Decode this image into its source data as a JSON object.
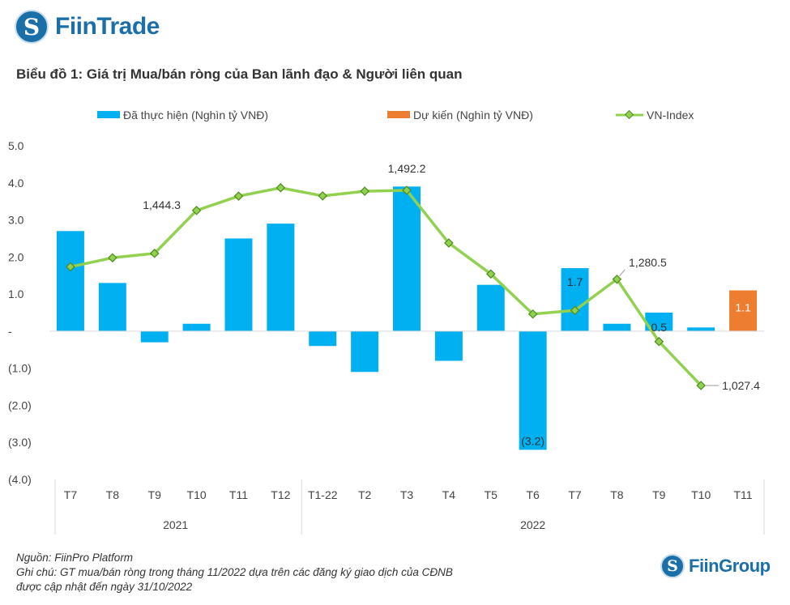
{
  "header": {
    "logo_text": "FiinTrade",
    "logo_symbol": "S",
    "title": "Biểu đồ 1: Giá trị Mua/bán ròng của Ban lãnh đạo & Người liên quan"
  },
  "footer": {
    "source": "Nguồn: FiinPro Platform",
    "note_line1": "Ghi chú: GT mua/bán ròng trong tháng 11/2022 dựa trên các đăng ký giao dịch của CĐNB",
    "note_line2": "được cập nhật đến ngày 31/10/2022",
    "logo_text": "FiinGroup",
    "logo_symbol": "S"
  },
  "chart_data": {
    "type": "bar+line",
    "title": "Biểu đồ 1: Giá trị Mua/bán ròng của Ban lãnh đạo & Người liên quan",
    "categories": [
      "T7",
      "T8",
      "T9",
      "T10",
      "T11",
      "T12",
      "T1-22",
      "T2",
      "T3",
      "T4",
      "T5",
      "T6",
      "T7",
      "T8",
      "T9",
      "T10",
      "T11"
    ],
    "groups": [
      {
        "label": "2021",
        "from": 0,
        "to": 5
      },
      {
        "label": "2022",
        "from": 6,
        "to": 16
      }
    ],
    "ylim": [
      -4,
      5
    ],
    "yticks": [
      5,
      4,
      3,
      2,
      1,
      0,
      -1,
      -2,
      -3,
      -4
    ],
    "ytick_labels": [
      "5.0",
      "4.0",
      "3.0",
      "2.0",
      "1.0",
      "-",
      "(1.0)",
      "(2.0)",
      "(3.0)",
      "(4.0)"
    ],
    "y2lim": [
      803.7,
      1598.3
    ],
    "legend_position": "top",
    "colors": {
      "realized": "#00b0f0",
      "expected": "#ed7d31",
      "line": "#92d050",
      "marker_edge": "#4e8a1e"
    },
    "series": [
      {
        "name": "Đã thực hiện (Nghìn tỷ VNĐ)",
        "type": "bar",
        "values": [
          2.7,
          1.3,
          -0.3,
          0.2,
          2.5,
          2.9,
          -0.4,
          -1.1,
          3.9,
          -0.8,
          1.25,
          -3.2,
          1.7,
          0.2,
          0.5,
          0.1,
          null
        ]
      },
      {
        "name": "Dự kiến (Nghìn tỷ VNĐ)",
        "type": "bar",
        "values": [
          null,
          null,
          null,
          null,
          null,
          null,
          null,
          null,
          null,
          null,
          null,
          null,
          null,
          null,
          null,
          null,
          1.1
        ]
      },
      {
        "name": "VN-Index",
        "type": "line",
        "axis": "secondary",
        "values": [
          1310.1,
          1331.6,
          1342.1,
          1444.3,
          1478.4,
          1498.3,
          1478.9,
          1490.1,
          1492.2,
          1366.8,
          1293.0,
          1197.6,
          1206.3,
          1280.5,
          1132.1,
          1027.4,
          null
        ]
      }
    ],
    "bar_labels": [
      {
        "index": 11,
        "text": "(3.2)"
      },
      {
        "index": 12,
        "text": "1.7"
      },
      {
        "index": 14,
        "text": "0.5"
      },
      {
        "index": 16,
        "text": "1.1"
      }
    ],
    "line_labels": [
      {
        "index": 3,
        "text": "1,444.3"
      },
      {
        "index": 8,
        "text": "1,492.2"
      },
      {
        "index": 13,
        "text": "1,280.5"
      },
      {
        "index": 15,
        "text": "1,027.4"
      }
    ]
  }
}
